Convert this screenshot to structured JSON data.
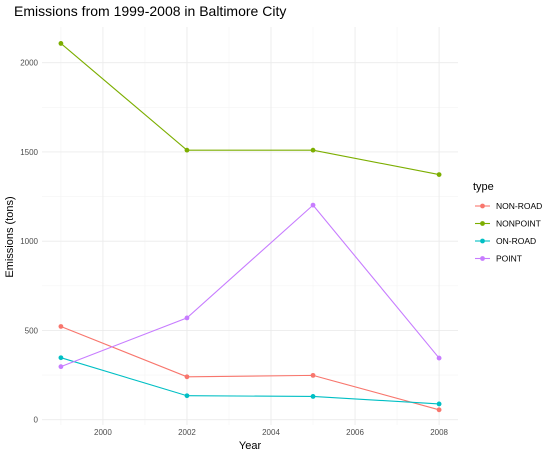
{
  "chart_data": {
    "type": "line",
    "title": "Emissions from 1999-2008 in Baltimore City",
    "xlabel": "Year",
    "ylabel": "Emissions (tons)",
    "x": [
      1999,
      2002,
      2005,
      2008
    ],
    "xlim": [
      1998.55,
      2008.45
    ],
    "ylim": [
      -30,
      2200
    ],
    "x_ticks": [
      2000,
      2002,
      2004,
      2006,
      2008
    ],
    "y_ticks": [
      0,
      500,
      1000,
      1500,
      2000
    ],
    "grid": true,
    "legend": {
      "title": "type",
      "placement": "right"
    },
    "series": [
      {
        "name": "NON-ROAD",
        "color": "#F8766D",
        "values": [
          522,
          240,
          248,
          55
        ]
      },
      {
        "name": "NONPOINT",
        "color": "#7CAE00",
        "values": [
          2108,
          1510,
          1510,
          1373
        ]
      },
      {
        "name": "ON-ROAD",
        "color": "#00BFC4",
        "values": [
          347,
          134,
          130,
          88
        ]
      },
      {
        "name": "POINT",
        "color": "#C77CFF",
        "values": [
          297,
          570,
          1202,
          345
        ]
      }
    ]
  }
}
